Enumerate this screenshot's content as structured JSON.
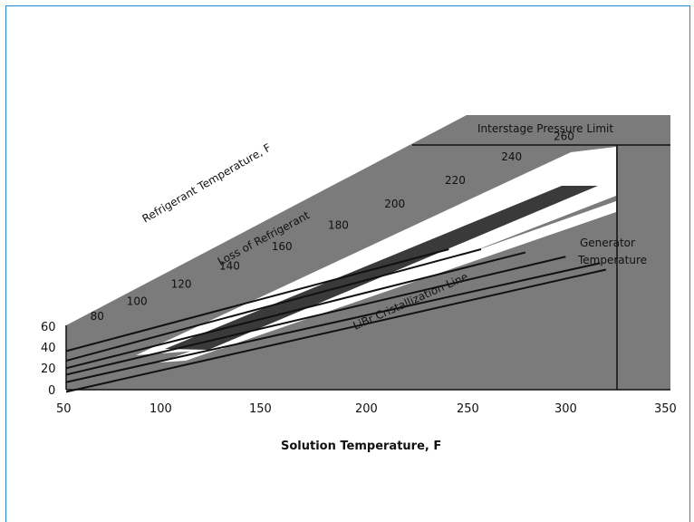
{
  "chart_data": {
    "type": "line",
    "xlabel": "Solution Temperature, F",
    "x_ticks": [
      "50",
      "100",
      "150",
      "200",
      "250",
      "300",
      "350"
    ],
    "y_ticks": [
      "0",
      "20",
      "40",
      "60"
    ],
    "xlim": [
      50,
      350
    ],
    "refrigerant_axis_label": "Refrigerant Temperature, F",
    "refrigerant_ticks": [
      {
        "label": "80",
        "x": 62,
        "y": 65
      },
      {
        "label": "100",
        "x": 80,
        "y": 79
      },
      {
        "label": "120",
        "x": 102,
        "y": 95
      },
      {
        "label": "140",
        "x": 126,
        "y": 112
      },
      {
        "label": "160",
        "x": 152,
        "y": 130
      },
      {
        "label": "180",
        "x": 180,
        "y": 150
      },
      {
        "label": "200",
        "x": 208,
        "y": 170
      },
      {
        "label": "220",
        "x": 238,
        "y": 192
      },
      {
        "label": "240",
        "x": 266,
        "y": 214
      },
      {
        "label": "260",
        "x": 292,
        "y": 233
      }
    ],
    "equal_temperature_lines": [
      {
        "x": [
          50,
          318
        ],
        "y": [
          -2,
          112
        ]
      },
      {
        "x": [
          50,
          315
        ],
        "y": [
          7,
          118
        ]
      },
      {
        "x": [
          50,
          298
        ],
        "y": [
          14,
          124
        ]
      },
      {
        "x": [
          50,
          278
        ],
        "y": [
          20,
          128
        ]
      },
      {
        "x": [
          50,
          256
        ],
        "y": [
          27,
          131
        ]
      },
      {
        "x": [
          50,
          240
        ],
        "y": [
          36,
          131
        ]
      }
    ],
    "annotations": {
      "interstage": "Interstage Pressure Limit",
      "loss": "Loss of Refrigerant",
      "crystallization": "LiBr Cristallization Line",
      "generator_line1": "Generator",
      "generator_line2": "Temperature"
    },
    "generator_temperature_x": 326,
    "colors": {
      "shaded": "#7a7a7a",
      "band": "#3a3a3a",
      "line": "#111111",
      "frame": "#1e88d8"
    }
  }
}
